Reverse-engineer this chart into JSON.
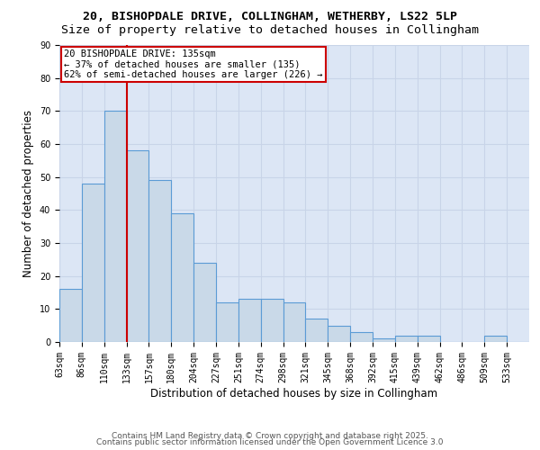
{
  "title_line1": "20, BISHOPDALE DRIVE, COLLINGHAM, WETHERBY, LS22 5LP",
  "title_line2": "Size of property relative to detached houses in Collingham",
  "xlabel": "Distribution of detached houses by size in Collingham",
  "ylabel": "Number of detached properties",
  "categories": [
    "63sqm",
    "86sqm",
    "110sqm",
    "133sqm",
    "157sqm",
    "180sqm",
    "204sqm",
    "227sqm",
    "251sqm",
    "274sqm",
    "298sqm",
    "321sqm",
    "345sqm",
    "368sqm",
    "392sqm",
    "415sqm",
    "439sqm",
    "462sqm",
    "486sqm",
    "509sqm",
    "533sqm"
  ],
  "bar_values": [
    16,
    48,
    70,
    58,
    49,
    39,
    24,
    12,
    13,
    13,
    12,
    7,
    5,
    3,
    1,
    2,
    2,
    0,
    0,
    2,
    0
  ],
  "bar_color": "#c9d9e8",
  "bar_edge_color": "#5b9bd5",
  "vline_x_index": 3,
  "vline_color": "#cc0000",
  "annotation_text": "20 BISHOPDALE DRIVE: 135sqm\n← 37% of detached houses are smaller (135)\n62% of semi-detached houses are larger (226) →",
  "annotation_box_color": "#ffffff",
  "annotation_box_edge_color": "#cc0000",
  "ylim": [
    0,
    90
  ],
  "yticks": [
    0,
    10,
    20,
    30,
    40,
    50,
    60,
    70,
    80,
    90
  ],
  "grid_color": "#c8d4e8",
  "bg_color": "#dce6f5",
  "footer_line1": "Contains HM Land Registry data © Crown copyright and database right 2025.",
  "footer_line2": "Contains public sector information licensed under the Open Government Licence 3.0",
  "title_fontsize": 9.5,
  "subtitle_fontsize": 9.5,
  "axis_label_fontsize": 8.5,
  "tick_fontsize": 7,
  "annotation_fontsize": 7.5,
  "footer_fontsize": 6.5
}
